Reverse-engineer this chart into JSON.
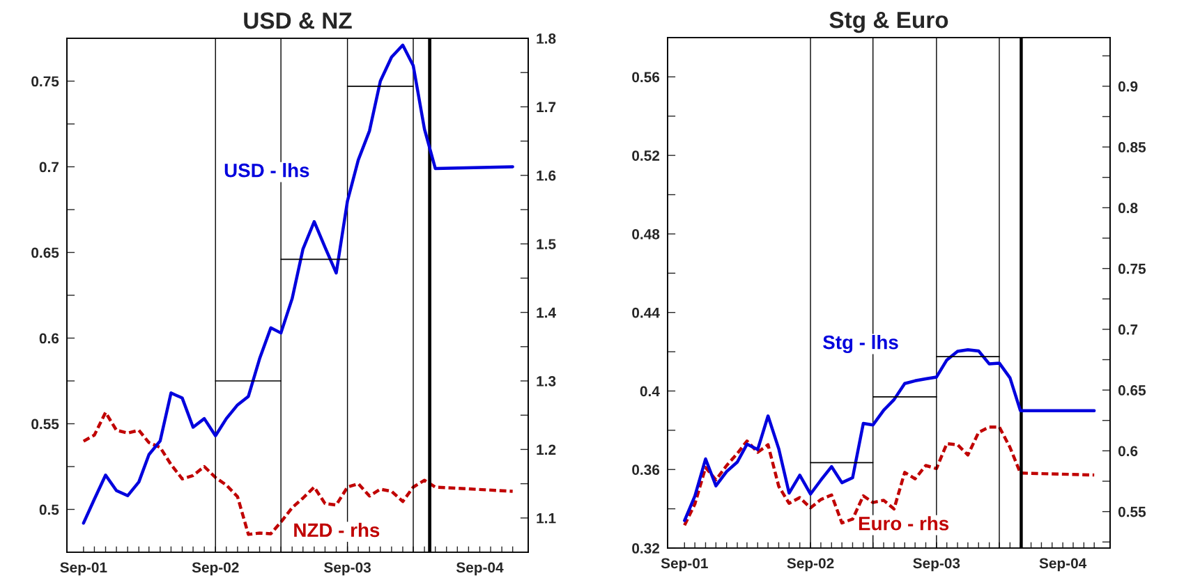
{
  "chart_data": [
    {
      "type": "line",
      "title": "USD & NZ",
      "legend": false,
      "grid": false,
      "x": [
        "2001-09",
        "2001-10",
        "2001-11",
        "2001-12",
        "2002-01",
        "2002-02",
        "2002-03",
        "2002-04",
        "2002-05",
        "2002-06",
        "2002-07",
        "2002-08",
        "2002-09",
        "2002-10",
        "2002-11",
        "2002-12",
        "2003-01",
        "2003-02",
        "2003-03",
        "2003-04",
        "2003-05",
        "2003-06",
        "2003-07",
        "2003-08",
        "2003-09",
        "2003-10",
        "2003-11",
        "2003-12",
        "2004-01",
        "2004-02",
        "2004-03",
        "2004-04",
        "2004-05",
        "2004-12"
      ],
      "xlim": [
        "2001-07-17",
        "2005-01-13"
      ],
      "xticks": [
        {
          "value": "2001-09",
          "label": "Sep-01"
        },
        {
          "value": "2001-10",
          "label": null
        },
        {
          "value": "2001-11",
          "label": null
        },
        {
          "value": "2001-12",
          "label": null
        },
        {
          "value": "2002-01",
          "label": null
        },
        {
          "value": "2002-02",
          "label": null
        },
        {
          "value": "2002-03",
          "label": null
        },
        {
          "value": "2002-04",
          "label": null
        },
        {
          "value": "2002-05",
          "label": null
        },
        {
          "value": "2002-06",
          "label": null
        },
        {
          "value": "2002-07",
          "label": null
        },
        {
          "value": "2002-08",
          "label": null
        },
        {
          "value": "2002-09",
          "label": "Sep-02"
        },
        {
          "value": "2002-10",
          "label": null
        },
        {
          "value": "2002-11",
          "label": null
        },
        {
          "value": "2002-12",
          "label": null
        },
        {
          "value": "2003-01",
          "label": null
        },
        {
          "value": "2003-02",
          "label": null
        },
        {
          "value": "2003-03",
          "label": null
        },
        {
          "value": "2003-04",
          "label": null
        },
        {
          "value": "2003-05",
          "label": null
        },
        {
          "value": "2003-06",
          "label": null
        },
        {
          "value": "2003-07",
          "label": null
        },
        {
          "value": "2003-08",
          "label": null
        },
        {
          "value": "2003-09",
          "label": "Sep-03"
        },
        {
          "value": "2003-10",
          "label": null
        },
        {
          "value": "2003-11",
          "label": null
        },
        {
          "value": "2003-12",
          "label": null
        },
        {
          "value": "2004-01",
          "label": null
        },
        {
          "value": "2004-02",
          "label": null
        },
        {
          "value": "2004-03",
          "label": null
        },
        {
          "value": "2004-04",
          "label": null
        },
        {
          "value": "2004-05",
          "label": null
        },
        {
          "value": "2004-06",
          "label": null
        },
        {
          "value": "2004-07",
          "label": null
        },
        {
          "value": "2004-08",
          "label": null
        },
        {
          "value": "2004-09",
          "label": "Sep-04"
        },
        {
          "value": "2004-10",
          "label": null
        },
        {
          "value": "2004-11",
          "label": null
        },
        {
          "value": "2004-12",
          "label": null
        }
      ],
      "ylim": [
        0.475,
        0.775
      ],
      "yticks": [
        0.5,
        {
          "value": 0.525,
          "label": null
        },
        0.55,
        {
          "value": 0.575,
          "label": null
        },
        0.6,
        {
          "value": 0.625,
          "label": null
        },
        0.65,
        {
          "value": 0.675,
          "label": null
        },
        0.7,
        {
          "value": 0.725,
          "label": null
        },
        0.75
      ],
      "y2lim": [
        1.05,
        1.8
      ],
      "y2ticks": [
        1.1,
        {
          "value": 1.15,
          "label": null
        },
        1.2,
        {
          "value": 1.25,
          "label": null
        },
        1.3,
        {
          "value": 1.35,
          "label": null
        },
        1.4,
        {
          "value": 1.45,
          "label": null
        },
        1.5,
        {
          "value": 1.55,
          "label": null
        },
        1.6,
        {
          "value": 1.65,
          "label": null
        },
        1.7,
        {
          "value": 1.75,
          "label": null
        },
        1.8
      ],
      "series": [
        {
          "name": "USD - lhs",
          "color": "#0000dd",
          "line_style": "solid",
          "values": [
            0.492,
            0.506,
            0.52,
            0.511,
            0.508,
            0.516,
            0.532,
            0.54,
            0.568,
            0.565,
            0.548,
            0.553,
            0.543,
            0.553,
            0.561,
            0.566,
            0.588,
            0.606,
            0.603,
            0.623,
            0.652,
            0.668,
            0.653,
            0.638,
            0.68,
            0.704,
            0.721,
            0.75,
            0.764,
            0.771,
            0.759,
            0.722,
            0.699,
            0.7
          ]
        },
        {
          "name": "NZD - rhs",
          "color": "#c00000",
          "line_style": "dashed",
          "axis": "y2",
          "values": [
            1.212,
            1.221,
            1.254,
            1.228,
            1.224,
            1.228,
            1.21,
            1.203,
            1.178,
            1.157,
            1.162,
            1.175,
            1.159,
            1.148,
            1.131,
            1.076,
            1.078,
            1.077,
            1.094,
            1.115,
            1.129,
            1.145,
            1.121,
            1.119,
            1.145,
            1.15,
            1.132,
            1.142,
            1.139,
            1.124,
            1.145,
            1.155,
            1.145,
            1.139
          ]
        },
        {
          "type": "line",
          "color": "#000000",
          "line_style": "solid",
          "x": [
            "2002-09",
            "2003-03"
          ],
          "values": [
            0.575,
            0.575
          ]
        },
        {
          "type": "line",
          "color": "#000000",
          "line_style": "solid",
          "x": [
            "2003-03",
            "2003-09"
          ],
          "values": [
            0.646,
            0.646
          ]
        },
        {
          "type": "line",
          "color": "#000000",
          "line_style": "solid",
          "x": [
            "2003-09",
            "2004-03"
          ],
          "values": [
            0.747,
            0.747
          ]
        }
      ],
      "ref_lines": [
        {
          "axis": "x",
          "value": "2002-09",
          "color": "#000000"
        },
        {
          "axis": "x",
          "value": "2003-03",
          "color": "#000000"
        },
        {
          "axis": "x",
          "value": "2003-09",
          "color": "#000000"
        },
        {
          "axis": "x",
          "value": "2004-03",
          "color": "#000000"
        }
      ],
      "bands": [
        {
          "axis": "x",
          "from": "2004-04-11",
          "to": "2004-04-20",
          "color": "#000000"
        }
      ]
    },
    {
      "type": "line",
      "title": "Stg & Euro",
      "legend": false,
      "grid": false,
      "x": [
        "2001-09",
        "2001-10",
        "2001-11",
        "2001-12",
        "2002-01",
        "2002-02",
        "2002-03",
        "2002-04",
        "2002-05",
        "2002-06",
        "2002-07",
        "2002-08",
        "2002-09",
        "2002-10",
        "2002-11",
        "2002-12",
        "2003-01",
        "2003-02",
        "2003-03",
        "2003-04",
        "2003-05",
        "2003-06",
        "2003-07",
        "2003-08",
        "2003-09",
        "2003-10",
        "2003-11",
        "2003-12",
        "2004-01",
        "2004-02",
        "2004-03",
        "2004-04",
        "2004-05",
        "2004-12"
      ],
      "xlim": [
        "2001-07-14",
        "2005-01-16"
      ],
      "xticks": [
        {
          "value": "2001-09",
          "label": "Sep-01"
        },
        {
          "value": "2001-10",
          "label": null
        },
        {
          "value": "2001-11",
          "label": null
        },
        {
          "value": "2001-12",
          "label": null
        },
        {
          "value": "2002-01",
          "label": null
        },
        {
          "value": "2002-02",
          "label": null
        },
        {
          "value": "2002-03",
          "label": null
        },
        {
          "value": "2002-04",
          "label": null
        },
        {
          "value": "2002-05",
          "label": null
        },
        {
          "value": "2002-06",
          "label": null
        },
        {
          "value": "2002-07",
          "label": null
        },
        {
          "value": "2002-08",
          "label": null
        },
        {
          "value": "2002-09",
          "label": "Sep-02"
        },
        {
          "value": "2002-10",
          "label": null
        },
        {
          "value": "2002-11",
          "label": null
        },
        {
          "value": "2002-12",
          "label": null
        },
        {
          "value": "2003-01",
          "label": null
        },
        {
          "value": "2003-02",
          "label": null
        },
        {
          "value": "2003-03",
          "label": null
        },
        {
          "value": "2003-04",
          "label": null
        },
        {
          "value": "2003-05",
          "label": null
        },
        {
          "value": "2003-06",
          "label": null
        },
        {
          "value": "2003-07",
          "label": null
        },
        {
          "value": "2003-08",
          "label": null
        },
        {
          "value": "2003-09",
          "label": "Sep-03"
        },
        {
          "value": "2003-10",
          "label": null
        },
        {
          "value": "2003-11",
          "label": null
        },
        {
          "value": "2003-12",
          "label": null
        },
        {
          "value": "2004-01",
          "label": null
        },
        {
          "value": "2004-02",
          "label": null
        },
        {
          "value": "2004-03",
          "label": null
        },
        {
          "value": "2004-04",
          "label": null
        },
        {
          "value": "2004-05",
          "label": null
        },
        {
          "value": "2004-06",
          "label": null
        },
        {
          "value": "2004-07",
          "label": null
        },
        {
          "value": "2004-08",
          "label": null
        },
        {
          "value": "2004-09",
          "label": "Sep-04"
        },
        {
          "value": "2004-10",
          "label": null
        },
        {
          "value": "2004-11",
          "label": null
        },
        {
          "value": "2004-12",
          "label": null
        }
      ],
      "ylim": [
        0.32,
        0.58
      ],
      "yticks": [
        0.32,
        {
          "value": 0.34,
          "label": null
        },
        0.36,
        {
          "value": 0.38,
          "label": null
        },
        0.4,
        {
          "value": 0.42,
          "label": null
        },
        0.44,
        {
          "value": 0.46,
          "label": null
        },
        0.48,
        {
          "value": 0.5,
          "label": null
        },
        0.52,
        {
          "value": 0.54,
          "label": null
        },
        0.56
      ],
      "y2lim": [
        0.52,
        0.94
      ],
      "y2ticks": [
        {
          "value": 0.525,
          "label": null
        },
        0.55,
        {
          "value": 0.575,
          "label": null
        },
        0.6,
        {
          "value": 0.625,
          "label": null
        },
        0.65,
        {
          "value": 0.675,
          "label": null
        },
        0.7,
        {
          "value": 0.725,
          "label": null
        },
        0.75,
        {
          "value": 0.775,
          "label": null
        },
        0.8,
        {
          "value": 0.825,
          "label": null
        },
        0.85,
        {
          "value": 0.875,
          "label": null
        },
        0.9,
        {
          "value": 0.925,
          "label": null
        }
      ],
      "series": [
        {
          "name": "Stg - lhs",
          "color": "#0000dd",
          "line_style": "solid",
          "values": [
            0.334,
            0.3465,
            0.3654,
            0.3517,
            0.359,
            0.3638,
            0.3729,
            0.3702,
            0.3873,
            0.3706,
            0.348,
            0.3571,
            0.3475,
            0.3546,
            0.3615,
            0.3533,
            0.3558,
            0.3835,
            0.3827,
            0.3902,
            0.3956,
            0.4038,
            0.4052,
            0.4062,
            0.4071,
            0.4158,
            0.4202,
            0.421,
            0.4204,
            0.4138,
            0.4142,
            0.4067,
            0.39,
            0.39
          ]
        },
        {
          "name": "Euro - rhs",
          "color": "#c00000",
          "line_style": "dashed",
          "axis": "y2",
          "values": [
            0.5388,
            0.5562,
            0.5863,
            0.5761,
            0.5879,
            0.5978,
            0.6081,
            0.5988,
            0.605,
            0.5708,
            0.5568,
            0.5615,
            0.5531,
            0.5599,
            0.5637,
            0.5407,
            0.5438,
            0.563,
            0.5575,
            0.5593,
            0.5522,
            0.5823,
            0.577,
            0.5879,
            0.5854,
            0.6059,
            0.605,
            0.5966,
            0.6152,
            0.6196,
            0.6196,
            0.6028,
            0.5817,
            0.5801
          ]
        },
        {
          "type": "line",
          "color": "#000000",
          "line_style": "solid",
          "x": [
            "2002-09",
            "2003-03"
          ],
          "values": [
            0.3635,
            0.3635
          ]
        },
        {
          "type": "line",
          "color": "#000000",
          "line_style": "solid",
          "x": [
            "2003-03",
            "2003-09"
          ],
          "values": [
            0.397,
            0.397
          ]
        },
        {
          "type": "line",
          "color": "#000000",
          "line_style": "solid",
          "x": [
            "2003-09",
            "2004-03"
          ],
          "values": [
            0.4175,
            0.4175
          ]
        }
      ],
      "ref_lines": [
        {
          "axis": "x",
          "value": "2002-09",
          "color": "#000000"
        },
        {
          "axis": "x",
          "value": "2003-03",
          "color": "#000000"
        },
        {
          "axis": "x",
          "value": "2003-09",
          "color": "#000000"
        },
        {
          "axis": "x",
          "value": "2004-03",
          "color": "#000000"
        }
      ],
      "bands": [
        {
          "axis": "x",
          "from": "2004-04-29",
          "to": "2004-05-08",
          "color": "#000000"
        }
      ]
    }
  ]
}
